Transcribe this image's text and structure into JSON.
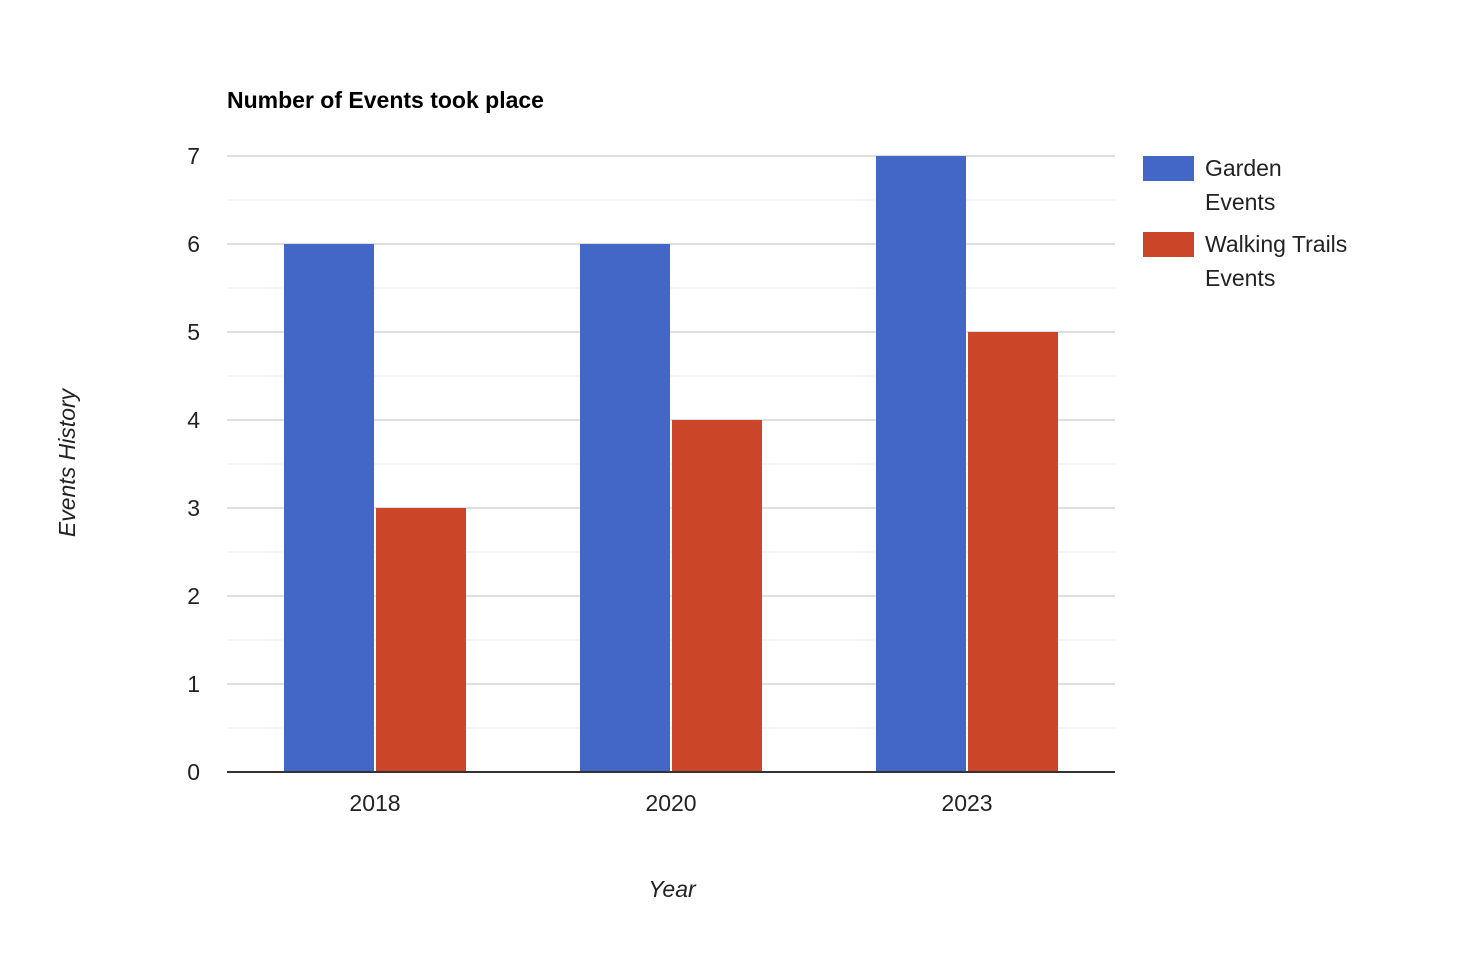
{
  "chart_data": {
    "type": "bar",
    "title": "Number of Events took place",
    "xlabel": "Year",
    "ylabel": "Events History",
    "categories": [
      "2018",
      "2020",
      "2023"
    ],
    "series": [
      {
        "name": "Garden Events",
        "legend_lines": [
          "Garden",
          "Events"
        ],
        "values": [
          6,
          6,
          7
        ],
        "color": "#4267c6"
      },
      {
        "name": "Walking Trails Events",
        "legend_lines": [
          "Walking Trails",
          "Events"
        ],
        "values": [
          3,
          4,
          5
        ],
        "color": "#cb4628"
      }
    ],
    "ylim": [
      0,
      7
    ],
    "y_ticks": [
      0,
      1,
      2,
      3,
      4,
      5,
      6,
      7
    ],
    "grid": true,
    "minor_grid": true,
    "legend_position": "right"
  }
}
